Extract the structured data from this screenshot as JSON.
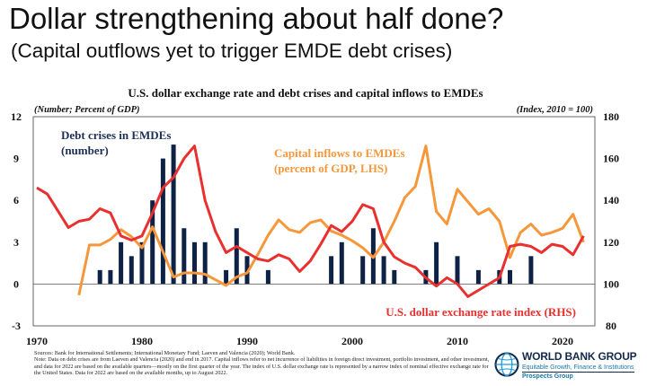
{
  "slide": {
    "title": "Dollar strengthening about half done?",
    "subtitle": "(Capital outflows yet to trigger EMDE debt crises)"
  },
  "chart_data": {
    "type": "bar+line",
    "title": "U.S. dollar exchange rate and debt crises and capital inflows to EMDEs",
    "ylabel_left": "(Number; Percent of GDP)",
    "ylabel_right": "(Index, 2010 = 100)",
    "ylim_left": [
      -3,
      12
    ],
    "ylim_right": [
      80,
      180
    ],
    "yticks_left": [
      "12",
      "9",
      "6",
      "3",
      "0",
      "-3"
    ],
    "yticks_right": [
      "180",
      "160",
      "140",
      "120",
      "100",
      "80"
    ],
    "xlim": [
      1970,
      2023
    ],
    "xticks": [
      "1970",
      "1980",
      "1990",
      "2000",
      "2010",
      "2020"
    ],
    "grid": false,
    "series": [
      {
        "name": "Debt crises in EMDEs (number)",
        "label_lines": [
          "Debt crises in EMDEs",
          "(number)"
        ],
        "kind": "bar",
        "axis": "left",
        "color": "#0d2245",
        "x": [
          1976,
          1977,
          1978,
          1979,
          1980,
          1981,
          1982,
          1983,
          1984,
          1985,
          1986,
          1988,
          1989,
          1990,
          1992,
          1998,
          1999,
          2001,
          2002,
          2003,
          2004,
          2007,
          2008,
          2010,
          2012,
          2014,
          2015,
          2017
        ],
        "values": [
          1,
          1,
          3,
          2,
          3,
          6,
          9,
          10,
          4,
          3,
          3,
          1,
          4,
          2,
          1,
          2,
          3,
          2,
          4,
          2,
          1,
          1,
          3,
          2,
          1,
          1,
          1,
          2
        ]
      },
      {
        "name": "Capital inflows to EMDEs (percent of GDP, LHS)",
        "label_lines": [
          "Capital inflows to EMDEs",
          "(percent of GDP, LHS)"
        ],
        "kind": "line",
        "axis": "left",
        "color": "#f5973a",
        "x": [
          1974,
          1975,
          1976,
          1977,
          1978,
          1979,
          1980,
          1981,
          1982,
          1983,
          1984,
          1985,
          1986,
          1987,
          1988,
          1989,
          1990,
          1991,
          1992,
          1993,
          1994,
          1995,
          1996,
          1997,
          1998,
          1999,
          2000,
          2001,
          2002,
          2003,
          2004,
          2005,
          2006,
          2007,
          2008,
          2009,
          2010,
          2011,
          2012,
          2013,
          2014,
          2015,
          2016,
          2017,
          2018,
          2019,
          2020,
          2021,
          2022
        ],
        "values": [
          -0.8,
          2.8,
          2.8,
          3.2,
          3.9,
          3.4,
          2.6,
          4.1,
          2.3,
          0.5,
          0.8,
          0.8,
          0.7,
          0.3,
          -0.1,
          0.5,
          0.8,
          2.1,
          3.5,
          4.6,
          3.9,
          3.7,
          4.4,
          4.6,
          3.8,
          3.5,
          3.1,
          2.6,
          1.9,
          3.0,
          4.5,
          6.2,
          7.0,
          9.9,
          5.2,
          4.3,
          6.8,
          5.9,
          5.0,
          5.4,
          4.5,
          1.9,
          3.7,
          4.3,
          3.5,
          3.7,
          4.0,
          5.0,
          3.0
        ]
      },
      {
        "name": "U.S. dollar exchange rate index (RHS)",
        "label_lines": [
          "U.S. dollar exchange rate index (RHS)"
        ],
        "kind": "line",
        "axis": "right",
        "color": "#e8302e",
        "x": [
          1970,
          1971,
          1972,
          1973,
          1974,
          1975,
          1976,
          1977,
          1978,
          1979,
          1980,
          1981,
          1982,
          1983,
          1984,
          1985,
          1986,
          1987,
          1988,
          1989,
          1990,
          1991,
          1992,
          1993,
          1994,
          1995,
          1996,
          1997,
          1998,
          1999,
          2000,
          2001,
          2002,
          2003,
          2004,
          2005,
          2006,
          2007,
          2008,
          2009,
          2010,
          2011,
          2012,
          2013,
          2014,
          2015,
          2016,
          2017,
          2018,
          2019,
          2020,
          2021,
          2022
        ],
        "values": [
          146,
          143,
          135,
          127,
          130,
          131,
          136,
          134,
          123,
          121,
          123,
          134,
          146,
          151,
          160,
          166,
          140,
          125,
          115,
          118,
          115,
          112,
          111,
          114,
          112,
          106,
          111,
          119,
          128,
          125,
          130,
          138,
          136,
          120,
          113,
          110,
          108,
          103,
          99,
          103,
          100,
          94,
          97,
          100,
          103,
          118,
          119,
          118,
          115,
          119,
          118,
          114,
          123
        ]
      }
    ]
  },
  "footer": {
    "sources": "Sources: Bank for International Settlements; International Monetary Fund; Laeven and Valencia (2020); World Bank.",
    "note": "Note: Data on debt crises are from Laeven and Valencia (2020) and end in 2017. Capital inflows refer to net incurrence of liabilities in foreign direct investment, portfolio investment, and other investment, and data for 2022 are based on the available quarters—mostly on the first quarter of the year. The index of U.S. dollar exchange rate is represented by a narrow index of nominal effective exchange rate for the United States. Data for 2022 are based on the available months, up to August 2022."
  },
  "logo": {
    "name": "WORLD BANK GROUP",
    "tagline": "Equitable Growth, Finance & Institutions",
    "unit": "Prospects Group"
  }
}
